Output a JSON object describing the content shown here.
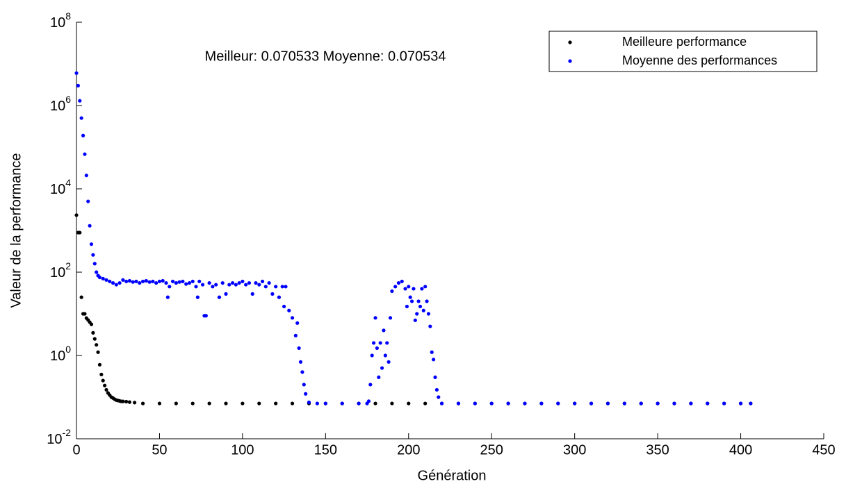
{
  "chart_data": {
    "type": "scatter",
    "annotation": "Meilleur: 0.070533 Moyenne: 0.070534",
    "xlabel": "Génération",
    "ylabel": "Valeur de la performance",
    "xlim": [
      0,
      450
    ],
    "xticks": [
      0,
      50,
      100,
      150,
      200,
      250,
      300,
      350,
      400,
      450
    ],
    "ylim": [
      0.01,
      100000000
    ],
    "log_y": true,
    "yticks": [
      {
        "value": 0.01,
        "label": "10^-2"
      },
      {
        "value": 1,
        "label": "10^0"
      },
      {
        "value": 100,
        "label": "10^2"
      },
      {
        "value": 10000,
        "label": "10^4"
      },
      {
        "value": 1000000,
        "label": "10^6"
      },
      {
        "value": 100000000,
        "label": "10^8"
      }
    ],
    "legend": "upper right",
    "series": [
      {
        "name": "Meilleure performance",
        "color": "#000000",
        "x": [
          0,
          1,
          2,
          3,
          4,
          5,
          6,
          7,
          8,
          9,
          10,
          11,
          12,
          13,
          14,
          15,
          16,
          17,
          18,
          19,
          20,
          21,
          22,
          23,
          24,
          25,
          26,
          27,
          28,
          30,
          32,
          35,
          40,
          50,
          60,
          70,
          80,
          90,
          100,
          110,
          120,
          130,
          140,
          150,
          160,
          170,
          180,
          190,
          200,
          210,
          220,
          230,
          240,
          250,
          260,
          270,
          280,
          290,
          300,
          310,
          320,
          330,
          340,
          350,
          360,
          370,
          380,
          390,
          400,
          406
        ],
        "values": [
          2340,
          890,
          890,
          25,
          10,
          10,
          7.9,
          7.1,
          6.3,
          5.6,
          3.5,
          2.5,
          1.8,
          1.2,
          0.6,
          0.35,
          0.25,
          0.19,
          0.15,
          0.126,
          0.112,
          0.1,
          0.095,
          0.089,
          0.085,
          0.083,
          0.081,
          0.079,
          0.079,
          0.078,
          0.076,
          0.074,
          0.0705,
          0.0705,
          0.0705,
          0.0705,
          0.0705,
          0.0705,
          0.0705,
          0.0705,
          0.0705,
          0.0705,
          0.0705,
          0.0705,
          0.0705,
          0.0705,
          0.0705,
          0.0705,
          0.0705,
          0.0705,
          0.0705,
          0.0705,
          0.0705,
          0.0705,
          0.0705,
          0.0705,
          0.0705,
          0.0705,
          0.0705,
          0.0705,
          0.0705,
          0.0705,
          0.0705,
          0.0705,
          0.0705,
          0.0705,
          0.0705,
          0.0705,
          0.0705,
          0.0705
        ]
      },
      {
        "name": "Moyenne des performances",
        "color": "#0000ff",
        "x": [
          0,
          1,
          2,
          3,
          4,
          5,
          6,
          7,
          8,
          9,
          10,
          11,
          12,
          13,
          14,
          16,
          18,
          20,
          22,
          24,
          26,
          28,
          30,
          32,
          34,
          36,
          38,
          40,
          42,
          44,
          46,
          48,
          50,
          52,
          54,
          55,
          56,
          58,
          60,
          62,
          64,
          66,
          68,
          70,
          72,
          73,
          74,
          76,
          77,
          78,
          80,
          82,
          84,
          86,
          88,
          90,
          92,
          94,
          96,
          98,
          100,
          102,
          104,
          106,
          108,
          110,
          112,
          114,
          116,
          118,
          120,
          122,
          124,
          125,
          126,
          128,
          130,
          132,
          133,
          134,
          135,
          136,
          137,
          138,
          140,
          145,
          150,
          160,
          170,
          175,
          176,
          177,
          178,
          179,
          180,
          181,
          182,
          183,
          184,
          185,
          186,
          187,
          188,
          189,
          190,
          192,
          194,
          196,
          198,
          199,
          200,
          201,
          202,
          203,
          204,
          205,
          206,
          207,
          208,
          209,
          210,
          211,
          212,
          213,
          214,
          215,
          216,
          217,
          218,
          220,
          230,
          240,
          250,
          260,
          270,
          280,
          290,
          300,
          310,
          320,
          330,
          340,
          350,
          360,
          370,
          380,
          390,
          400,
          406
        ],
        "values": [
          6000000,
          3000000,
          1300000,
          500000,
          190000,
          68000,
          21000,
          5000,
          1300,
          470,
          260,
          160,
          100,
          83,
          75,
          70,
          65,
          60,
          55,
          50,
          55,
          65,
          60,
          62,
          58,
          60,
          55,
          60,
          62,
          58,
          60,
          55,
          60,
          62,
          55,
          25,
          45,
          60,
          55,
          58,
          60,
          52,
          55,
          60,
          45,
          25,
          60,
          50,
          9,
          9,
          55,
          45,
          50,
          25,
          55,
          30,
          50,
          55,
          50,
          55,
          60,
          50,
          55,
          30,
          55,
          50,
          60,
          45,
          55,
          30,
          45,
          25,
          45,
          15,
          45,
          12,
          8,
          3,
          6,
          1.5,
          0.7,
          0.4,
          0.2,
          0.12,
          0.075,
          0.0705,
          0.0705,
          0.0705,
          0.0705,
          0.0705,
          0.08,
          0.2,
          1,
          2,
          8,
          1.5,
          0.3,
          2,
          0.5,
          4,
          1,
          2,
          0.7,
          8,
          35,
          45,
          55,
          60,
          40,
          15,
          45,
          25,
          20,
          40,
          7,
          10,
          20,
          15,
          40,
          12,
          45,
          20,
          10,
          5,
          1.2,
          0.8,
          0.3,
          0.15,
          0.1,
          0.0705,
          0.0705,
          0.0705,
          0.0705,
          0.0705,
          0.0705,
          0.0705,
          0.0705,
          0.0705,
          0.0705,
          0.0705,
          0.0705,
          0.0705,
          0.0705,
          0.0705,
          0.0705,
          0.0705,
          0.0705,
          0.0705,
          0.0705
        ]
      }
    ]
  }
}
